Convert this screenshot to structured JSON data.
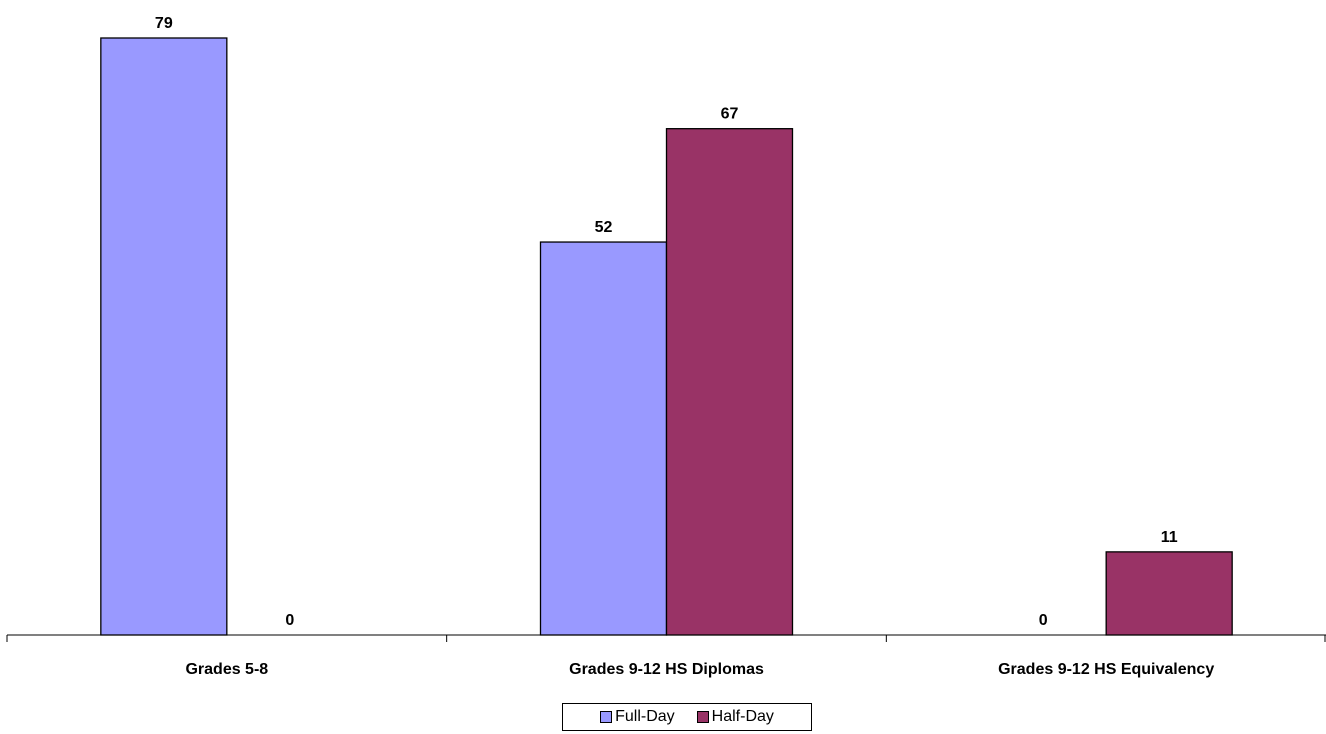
{
  "chart_data": {
    "type": "bar",
    "categories": [
      "Grades 5-8",
      "Grades 9-12 HS Diplomas",
      "Grades 9-12 HS Equivalency"
    ],
    "series": [
      {
        "name": "Full-Day",
        "values": [
          79,
          52,
          0
        ],
        "color": "#9999FF"
      },
      {
        "name": "Half-Day",
        "values": [
          0,
          67,
          11
        ],
        "color": "#993366"
      }
    ],
    "title": "",
    "xlabel": "",
    "ylabel": "",
    "ylim": [
      0,
      79
    ],
    "grid": false,
    "legend_position": "bottom"
  }
}
